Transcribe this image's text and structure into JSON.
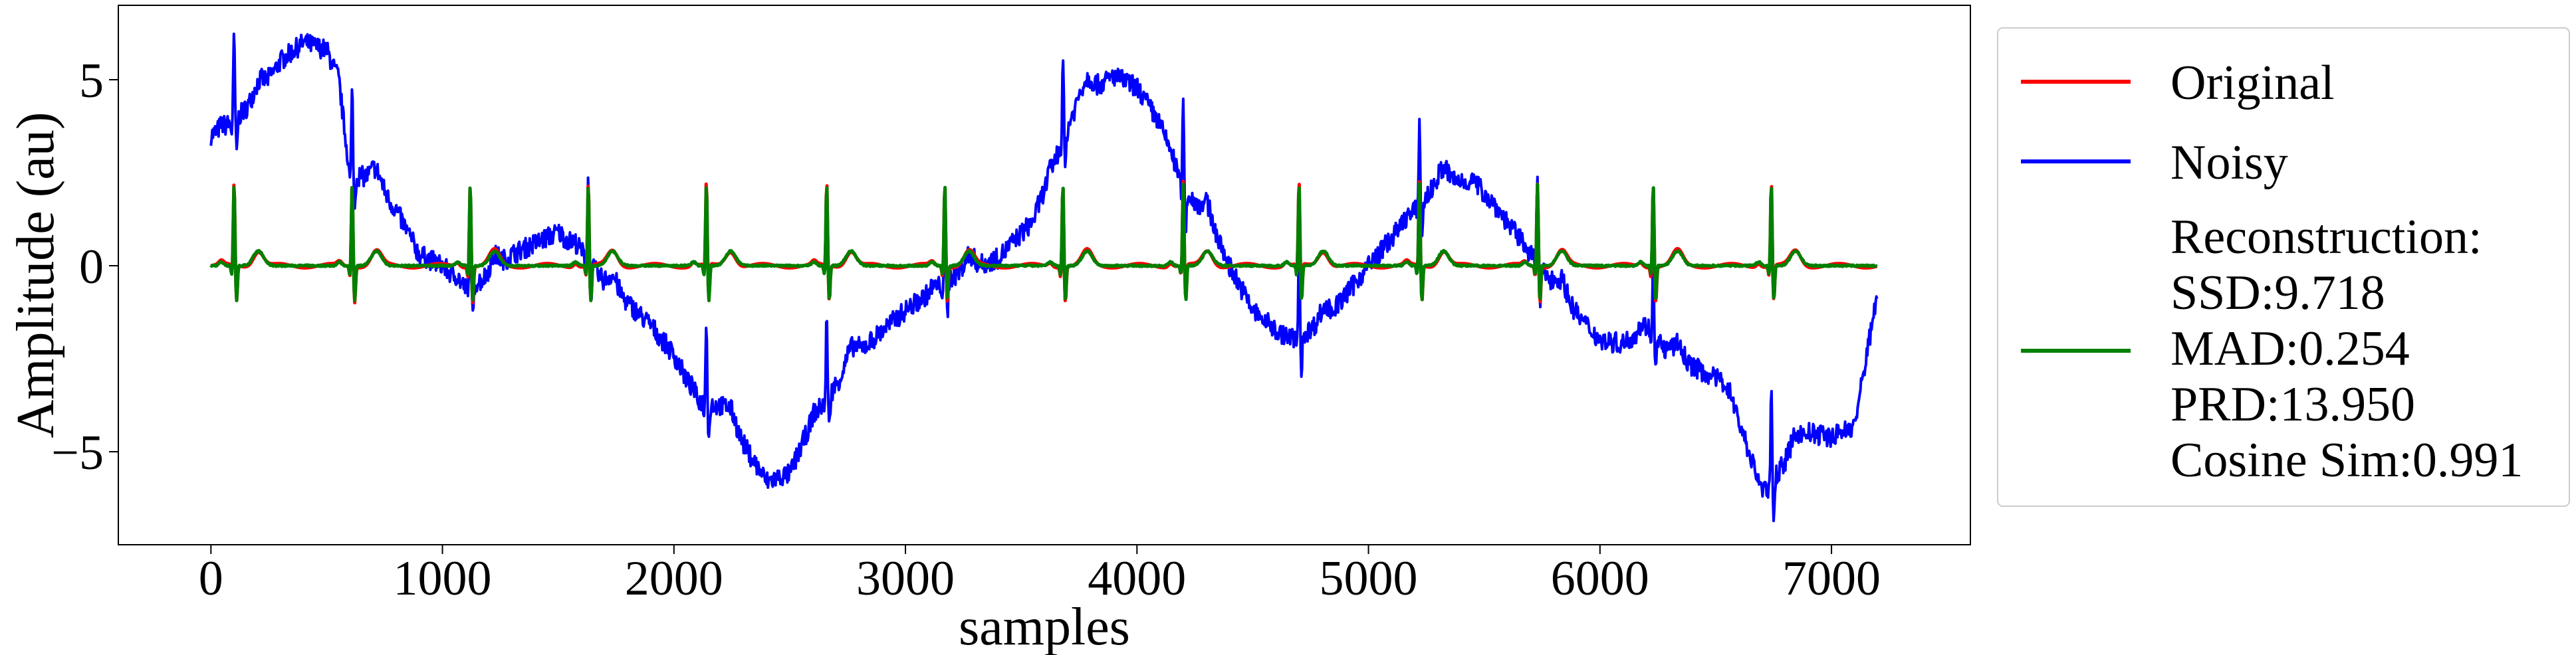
{
  "chart_data": {
    "type": "line",
    "xlabel": "samples",
    "ylabel": "Amplitude (au)",
    "xlim": [
      -400,
      7600
    ],
    "ylim": [
      -7.5,
      7.0
    ],
    "xticks": [
      0,
      1000,
      2000,
      3000,
      4000,
      5000,
      6000,
      7000
    ],
    "xtick_labels": [
      "0",
      "1000",
      "2000",
      "3000",
      "4000",
      "5000",
      "6000",
      "7000"
    ],
    "yticks": [
      5,
      0,
      -5
    ],
    "ytick_labels": [
      "5",
      "0",
      "−5"
    ],
    "grid": false,
    "legend_position": "outside-right",
    "colors": {
      "original": "#ff0000",
      "noisy": "#0000ff",
      "reconstruction": "#008000"
    },
    "n_samples": 7200,
    "heartbeat_r_peaks": [
      100,
      610,
      1120,
      1630,
      2140,
      2660,
      3170,
      3680,
      4200,
      4700,
      5220,
      5730,
      6230,
      6740
    ],
    "noisy_baseline_knots": [
      [
        0,
        3.5
      ],
      [
        100,
        3.9
      ],
      [
        200,
        4.5
      ],
      [
        300,
        5.5
      ],
      [
        400,
        6.0
      ],
      [
        500,
        5.8
      ],
      [
        550,
        5.0
      ],
      [
        600,
        2.5
      ],
      [
        700,
        2.3
      ],
      [
        800,
        1.5
      ],
      [
        900,
        0.3
      ],
      [
        1000,
        0.0
      ],
      [
        1100,
        -0.6
      ],
      [
        1200,
        -0.3
      ],
      [
        1300,
        0.3
      ],
      [
        1400,
        0.6
      ],
      [
        1500,
        0.9
      ],
      [
        1600,
        0.4
      ],
      [
        1700,
        -0.5
      ],
      [
        1800,
        -1.0
      ],
      [
        1900,
        -1.6
      ],
      [
        2000,
        -2.4
      ],
      [
        2100,
        -3.6
      ],
      [
        2200,
        -3.8
      ],
      [
        2300,
        -4.8
      ],
      [
        2400,
        -5.8
      ],
      [
        2500,
        -5.6
      ],
      [
        2600,
        -4.1
      ],
      [
        2700,
        -3.2
      ],
      [
        2800,
        -2.3
      ],
      [
        3000,
        -1.2
      ],
      [
        3200,
        -0.3
      ],
      [
        3400,
        0.2
      ],
      [
        3550,
        1.2
      ],
      [
        3650,
        2.9
      ],
      [
        3750,
        4.5
      ],
      [
        3900,
        5.1
      ],
      [
        4000,
        4.8
      ],
      [
        4100,
        3.8
      ],
      [
        4200,
        2.1
      ],
      [
        4300,
        1.3
      ],
      [
        4400,
        0.0
      ],
      [
        4500,
        -1.2
      ],
      [
        4650,
        -2.0
      ],
      [
        4800,
        -1.6
      ],
      [
        5000,
        0.0
      ],
      [
        5200,
        1.5
      ],
      [
        5300,
        2.2
      ],
      [
        5450,
        2.3
      ],
      [
        5550,
        1.6
      ],
      [
        5700,
        0.3
      ],
      [
        5800,
        -0.5
      ],
      [
        5900,
        -1.3
      ],
      [
        6000,
        -2.0
      ],
      [
        6100,
        -2.1
      ],
      [
        6200,
        -1.6
      ],
      [
        6300,
        -2.4
      ],
      [
        6400,
        -2.7
      ],
      [
        6550,
        -3.2
      ],
      [
        6700,
        -6.1
      ],
      [
        6800,
        -5.3
      ],
      [
        6900,
        -4.5
      ],
      [
        7000,
        -4.6
      ],
      [
        7100,
        -4.3
      ],
      [
        7190,
        -1.0
      ],
      [
        7200,
        -0.9
      ]
    ],
    "series": [
      {
        "name": "Original",
        "key": "original"
      },
      {
        "name": "Noisy",
        "key": "noisy"
      },
      {
        "name": "Reconstruction:",
        "key": "reconstruction"
      }
    ],
    "metrics": [
      "SSD:9.718",
      "MAD:0.254",
      "PRD:13.950",
      "Cosine Sim:0.991"
    ]
  }
}
